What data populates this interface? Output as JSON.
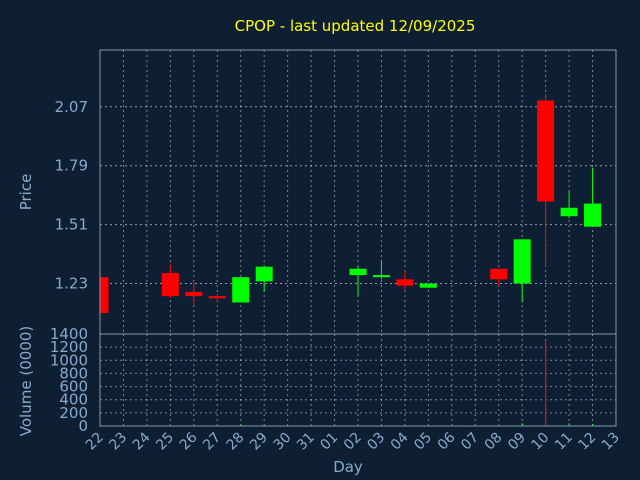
{
  "chart_data": [
    {
      "type": "candlestick",
      "title": "CPOP - last updated 12/09/2025",
      "ylabel": "Price",
      "ylim": [
        0.99,
        2.34
      ],
      "yticks": [
        1.23,
        1.51,
        1.79,
        2.07
      ],
      "categories": [
        "22",
        "23",
        "24",
        "25",
        "26",
        "27",
        "28",
        "29",
        "30",
        "31",
        "01",
        "02",
        "03",
        "04",
        "05",
        "06",
        "07",
        "08",
        "09",
        "10",
        "11",
        "12",
        "13"
      ],
      "candles": [
        {
          "day": "22",
          "open": 1.26,
          "close": 1.09,
          "high": 1.26,
          "low": 1.09
        },
        {
          "day": "25",
          "open": 1.28,
          "close": 1.17,
          "high": 1.32,
          "low": 1.16
        },
        {
          "day": "26",
          "open": 1.19,
          "close": 1.17,
          "high": 1.24,
          "low": 1.13
        },
        {
          "day": "27",
          "open": 1.17,
          "close": 1.16,
          "high": 1.18,
          "low": 1.14
        },
        {
          "day": "28",
          "open": 1.14,
          "close": 1.26,
          "high": 1.26,
          "low": 1.14
        },
        {
          "day": "29",
          "open": 1.24,
          "close": 1.31,
          "high": 1.31,
          "low": 1.19
        },
        {
          "day": "02",
          "open": 1.27,
          "close": 1.3,
          "high": 1.31,
          "low": 1.17
        },
        {
          "day": "03",
          "open": 1.26,
          "close": 1.27,
          "high": 1.34,
          "low": 1.25
        },
        {
          "day": "04",
          "open": 1.25,
          "close": 1.22,
          "high": 1.29,
          "low": 1.2
        },
        {
          "day": "05",
          "open": 1.21,
          "close": 1.23,
          "high": 1.23,
          "low": 1.21
        },
        {
          "day": "08",
          "open": 1.3,
          "close": 1.25,
          "high": 1.3,
          "low": 1.22
        },
        {
          "day": "09",
          "open": 1.23,
          "close": 1.44,
          "high": 1.44,
          "low": 1.14
        },
        {
          "day": "10",
          "open": 2.1,
          "close": 1.62,
          "high": 2.13,
          "low": 1.31
        },
        {
          "day": "11",
          "open": 1.55,
          "close": 1.59,
          "high": 1.67,
          "low": 1.54
        },
        {
          "day": "12",
          "open": 1.5,
          "close": 1.61,
          "high": 1.78,
          "low": 1.5
        }
      ]
    },
    {
      "type": "bar",
      "ylabel": "Volume (0000)",
      "xlabel": "Day",
      "ylim": [
        0,
        1400
      ],
      "yticks": [
        0,
        200,
        400,
        600,
        800,
        1000,
        1200,
        1400
      ],
      "categories": [
        "22",
        "23",
        "24",
        "25",
        "26",
        "27",
        "28",
        "29",
        "30",
        "31",
        "01",
        "02",
        "03",
        "04",
        "05",
        "06",
        "07",
        "08",
        "09",
        "10",
        "11",
        "12",
        "13"
      ],
      "values": [
        {
          "day": "28",
          "value": 20
        },
        {
          "day": "09",
          "value": 40
        },
        {
          "day": "10",
          "value": 1300
        },
        {
          "day": "11",
          "value": 40
        },
        {
          "day": "12",
          "value": 30
        }
      ]
    }
  ],
  "colors": {
    "background": "#0f1f33",
    "up": "#00ff00",
    "down": "#ff0000",
    "title": "#ffff00",
    "axis_text": "#88aacc",
    "grid": "#ffffff"
  }
}
